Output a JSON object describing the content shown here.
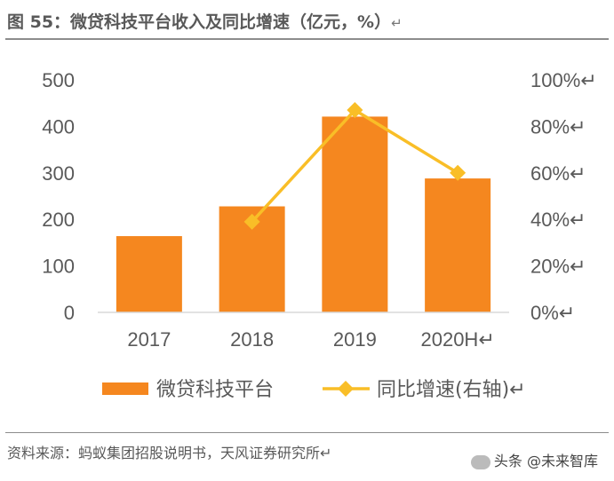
{
  "title": {
    "text": "图 55：微贷科技平台收入及同比增速（亿元，%）",
    "return_mark": "↵"
  },
  "chart_data": {
    "type": "bar",
    "categories": [
      "2017",
      "2018",
      "2019",
      "2020H"
    ],
    "category_suffix": [
      "",
      "",
      "",
      "↵"
    ],
    "series": [
      {
        "name": "微贷科技平台",
        "type": "bar",
        "axis": "left",
        "color": "#F5871F",
        "values": [
          164,
          228,
          421,
          288
        ]
      },
      {
        "name": "同比增速(右轴)",
        "type": "line",
        "axis": "right",
        "color": "#F9BE27",
        "values": [
          null,
          39,
          87,
          60
        ]
      }
    ],
    "left_axis": {
      "min": 0,
      "max": 500,
      "ticks": [
        "0",
        "100",
        "200",
        "300",
        "400",
        "500"
      ]
    },
    "right_axis": {
      "min": 0,
      "max": 100,
      "ticks": [
        "0%↵",
        "20%↵",
        "40%↵",
        "60%↵",
        "80%↵",
        "100%↵"
      ]
    },
    "legend_position": "bottom",
    "legend_suffix": "↵"
  },
  "source": {
    "text": "资料来源：蚂蚁集团招股说明书，天风证券研究所↵"
  },
  "watermark": {
    "text": "头条 @未来智库"
  }
}
